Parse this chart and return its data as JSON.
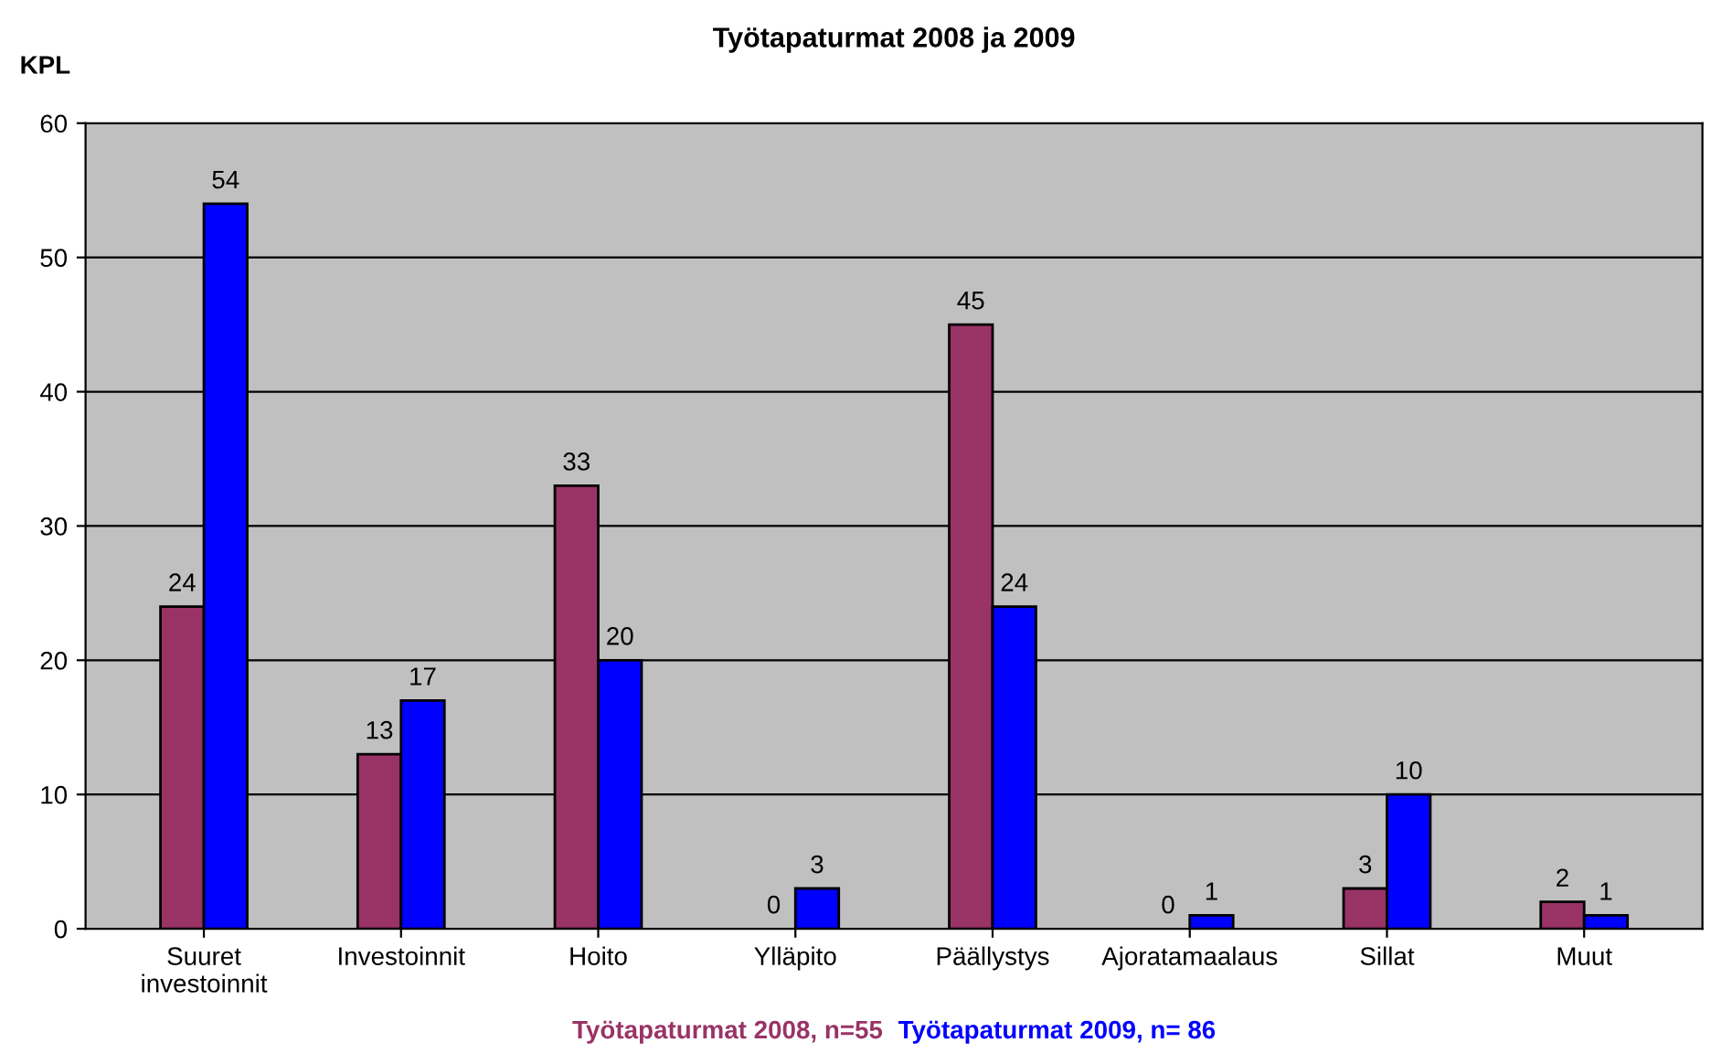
{
  "chart_data": {
    "type": "bar",
    "title": "Työtapaturmat 2008 ja 2009",
    "ylabel": "KPL",
    "categories": [
      "Suuret\ninvestoinnit",
      "Investoinnit",
      "Hoito",
      "Ylläpito",
      "Päällystys",
      "Ajoratamaalaus",
      "Sillat",
      "Muut"
    ],
    "series": [
      {
        "name": "Työtapaturmat 2008, n=55",
        "color": "#993366",
        "values": [
          24,
          13,
          33,
          0,
          45,
          0,
          3,
          2
        ]
      },
      {
        "name": "Työtapaturmat 2009, n= 86",
        "color": "#0000ff",
        "values": [
          54,
          17,
          20,
          3,
          24,
          1,
          10,
          1
        ]
      }
    ],
    "ylim": [
      0,
      60
    ],
    "yticks": [
      0,
      10,
      20,
      30,
      40,
      50,
      60
    ],
    "grid": "y",
    "legend": "bottom",
    "data_labels": true
  }
}
